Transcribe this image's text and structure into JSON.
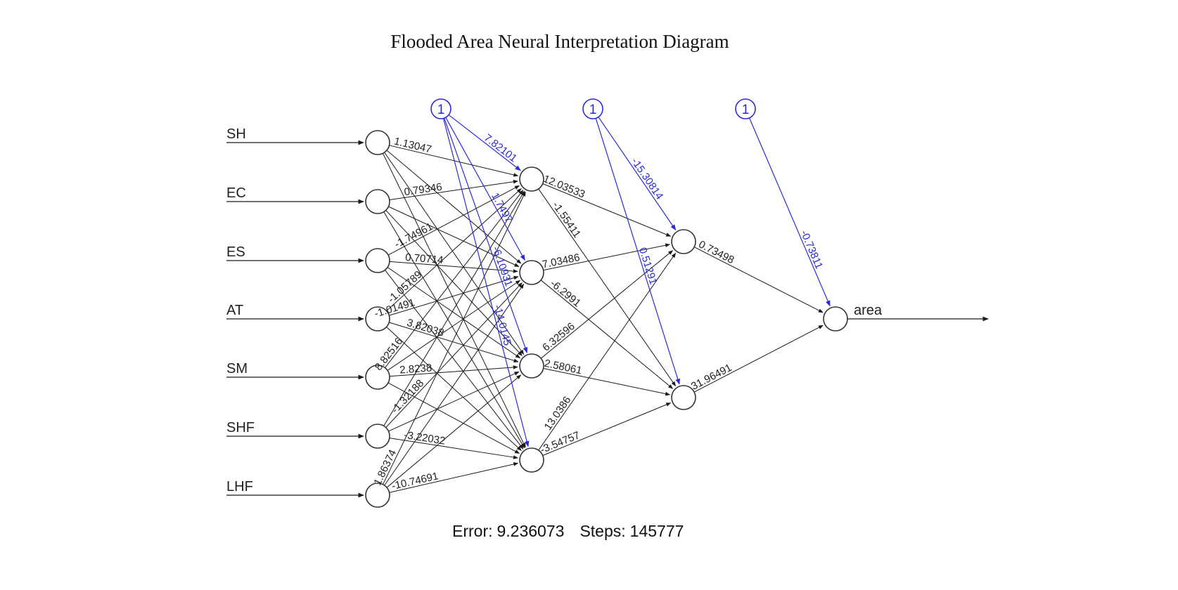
{
  "title": "Flooded Area Neural Interpretation Diagram",
  "footer": {
    "error_label": "Error:",
    "error": "9.236073",
    "steps_label": "Steps:",
    "steps": "145777"
  },
  "colors": {
    "edge": "#1a1a1a",
    "bias": "#2b2bd6",
    "node": "#333333"
  },
  "network": {
    "inputs": [
      "SH",
      "EC",
      "ES",
      "AT",
      "SM",
      "SHF",
      "LHF"
    ],
    "output": "area",
    "bias_label": "1",
    "hidden_layer_sizes": [
      4,
      2
    ],
    "visible_weights": {
      "input_to_h1": [
        "1.13047",
        "0.79346",
        "-1.74961",
        "0.70714",
        "-1.05789",
        "3.82038",
        "2.8238",
        "-1.32188",
        "-3.22032",
        "-10.74691",
        "-1.01491",
        "8.82516",
        "1.86374"
      ],
      "bias_to_h1": [
        "7.82101",
        "1.7497",
        "-6.10931",
        "-14.0145"
      ],
      "h1_to_h2": [
        "12.03533",
        "-1.55411",
        "7.03486",
        "-6.2991",
        "6.32596",
        "2.58061",
        "13.0386",
        "-3.54757"
      ],
      "bias_to_h2": [
        "-15.30814",
        "0.51291"
      ],
      "h2_to_out": [
        "0.73498",
        "31.96491"
      ],
      "bias_to_out": "-0.73811"
    }
  }
}
